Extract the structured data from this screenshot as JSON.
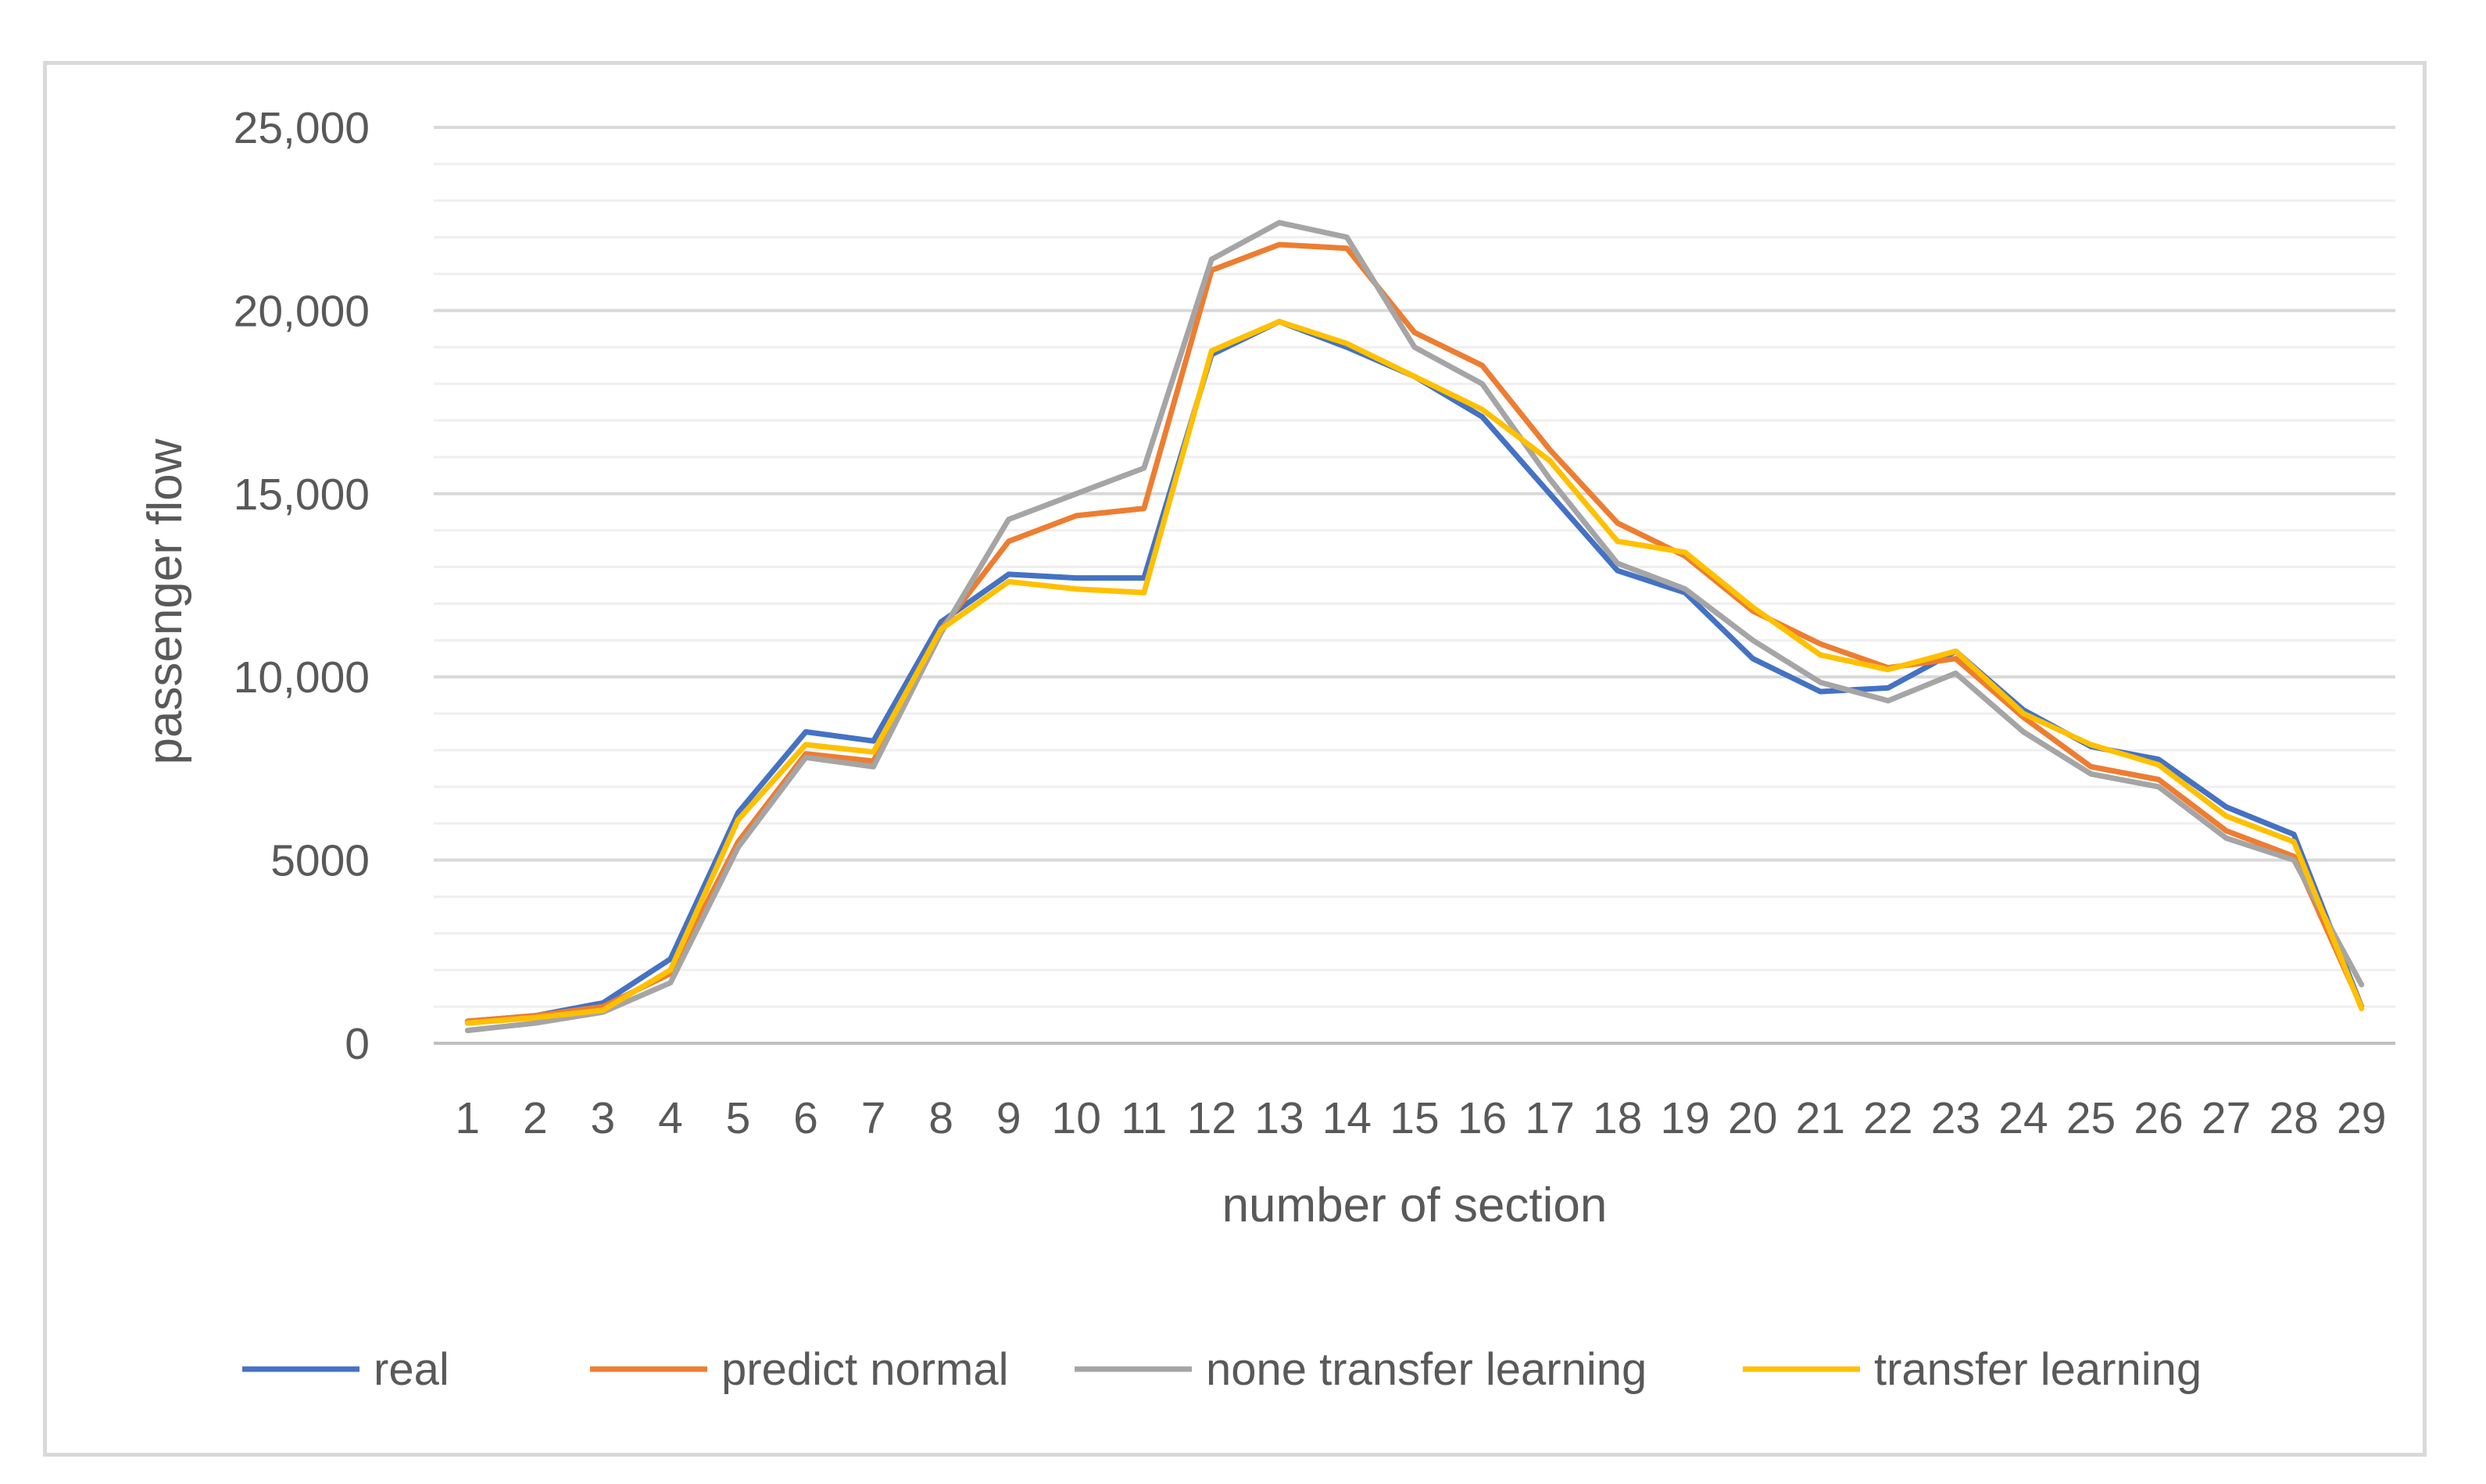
{
  "chart_data": {
    "type": "line",
    "title": "",
    "xlabel": "number of section",
    "ylabel": "passenger flow",
    "ylim": [
      0,
      25000
    ],
    "y_ticks": [
      {
        "value": 0,
        "label": "0"
      },
      {
        "value": 5000,
        "label": "5000"
      },
      {
        "value": 10000,
        "label": "10,000"
      },
      {
        "value": 15000,
        "label": "15,000"
      },
      {
        "value": 20000,
        "label": "20,000"
      },
      {
        "value": 25000,
        "label": "25,000"
      }
    ],
    "minor_grid_step": 1000,
    "grid": true,
    "legend_position": "bottom",
    "categories": [
      "1",
      "2",
      "3",
      "4",
      "5",
      "6",
      "7",
      "8",
      "9",
      "10",
      "11",
      "12",
      "13",
      "14",
      "15",
      "16",
      "17",
      "18",
      "19",
      "20",
      "21",
      "22",
      "23",
      "24",
      "25",
      "26",
      "27",
      "28",
      "29"
    ],
    "series": [
      {
        "name": "real",
        "color": "#4472c4",
        "values": [
          600,
          750,
          1100,
          2300,
          6300,
          8500,
          8250,
          11500,
          12800,
          12700,
          12700,
          18800,
          19700,
          19000,
          18200,
          17100,
          15000,
          12900,
          12300,
          10500,
          9600,
          9700,
          10700,
          9100,
          8100,
          7750,
          6450,
          5700,
          1000
        ]
      },
      {
        "name": "predict normal",
        "color": "#ed7d31",
        "values": [
          600,
          750,
          1000,
          1900,
          5500,
          7900,
          7700,
          11300,
          13700,
          14400,
          14600,
          21100,
          21800,
          21700,
          19400,
          18500,
          16200,
          14200,
          13300,
          11800,
          10900,
          10250,
          10500,
          8900,
          7550,
          7200,
          5800,
          5100,
          1000
        ]
      },
      {
        "name": "none transfer learning",
        "color": "#a5a5a5",
        "values": [
          350,
          550,
          850,
          1650,
          5350,
          7800,
          7550,
          11200,
          14300,
          15000,
          15700,
          21400,
          22400,
          22000,
          19000,
          18000,
          15400,
          13100,
          12400,
          11000,
          9850,
          9350,
          10100,
          8500,
          7350,
          7000,
          5600,
          5000,
          1600
        ]
      },
      {
        "name": "transfer learning",
        "color": "#ffc000",
        "values": [
          550,
          700,
          900,
          2000,
          6100,
          8150,
          7950,
          11300,
          12600,
          12400,
          12300,
          18900,
          19700,
          19100,
          18200,
          17300,
          15900,
          13700,
          13400,
          11900,
          10600,
          10200,
          10700,
          9000,
          8150,
          7600,
          6200,
          5500,
          950
        ]
      }
    ]
  }
}
